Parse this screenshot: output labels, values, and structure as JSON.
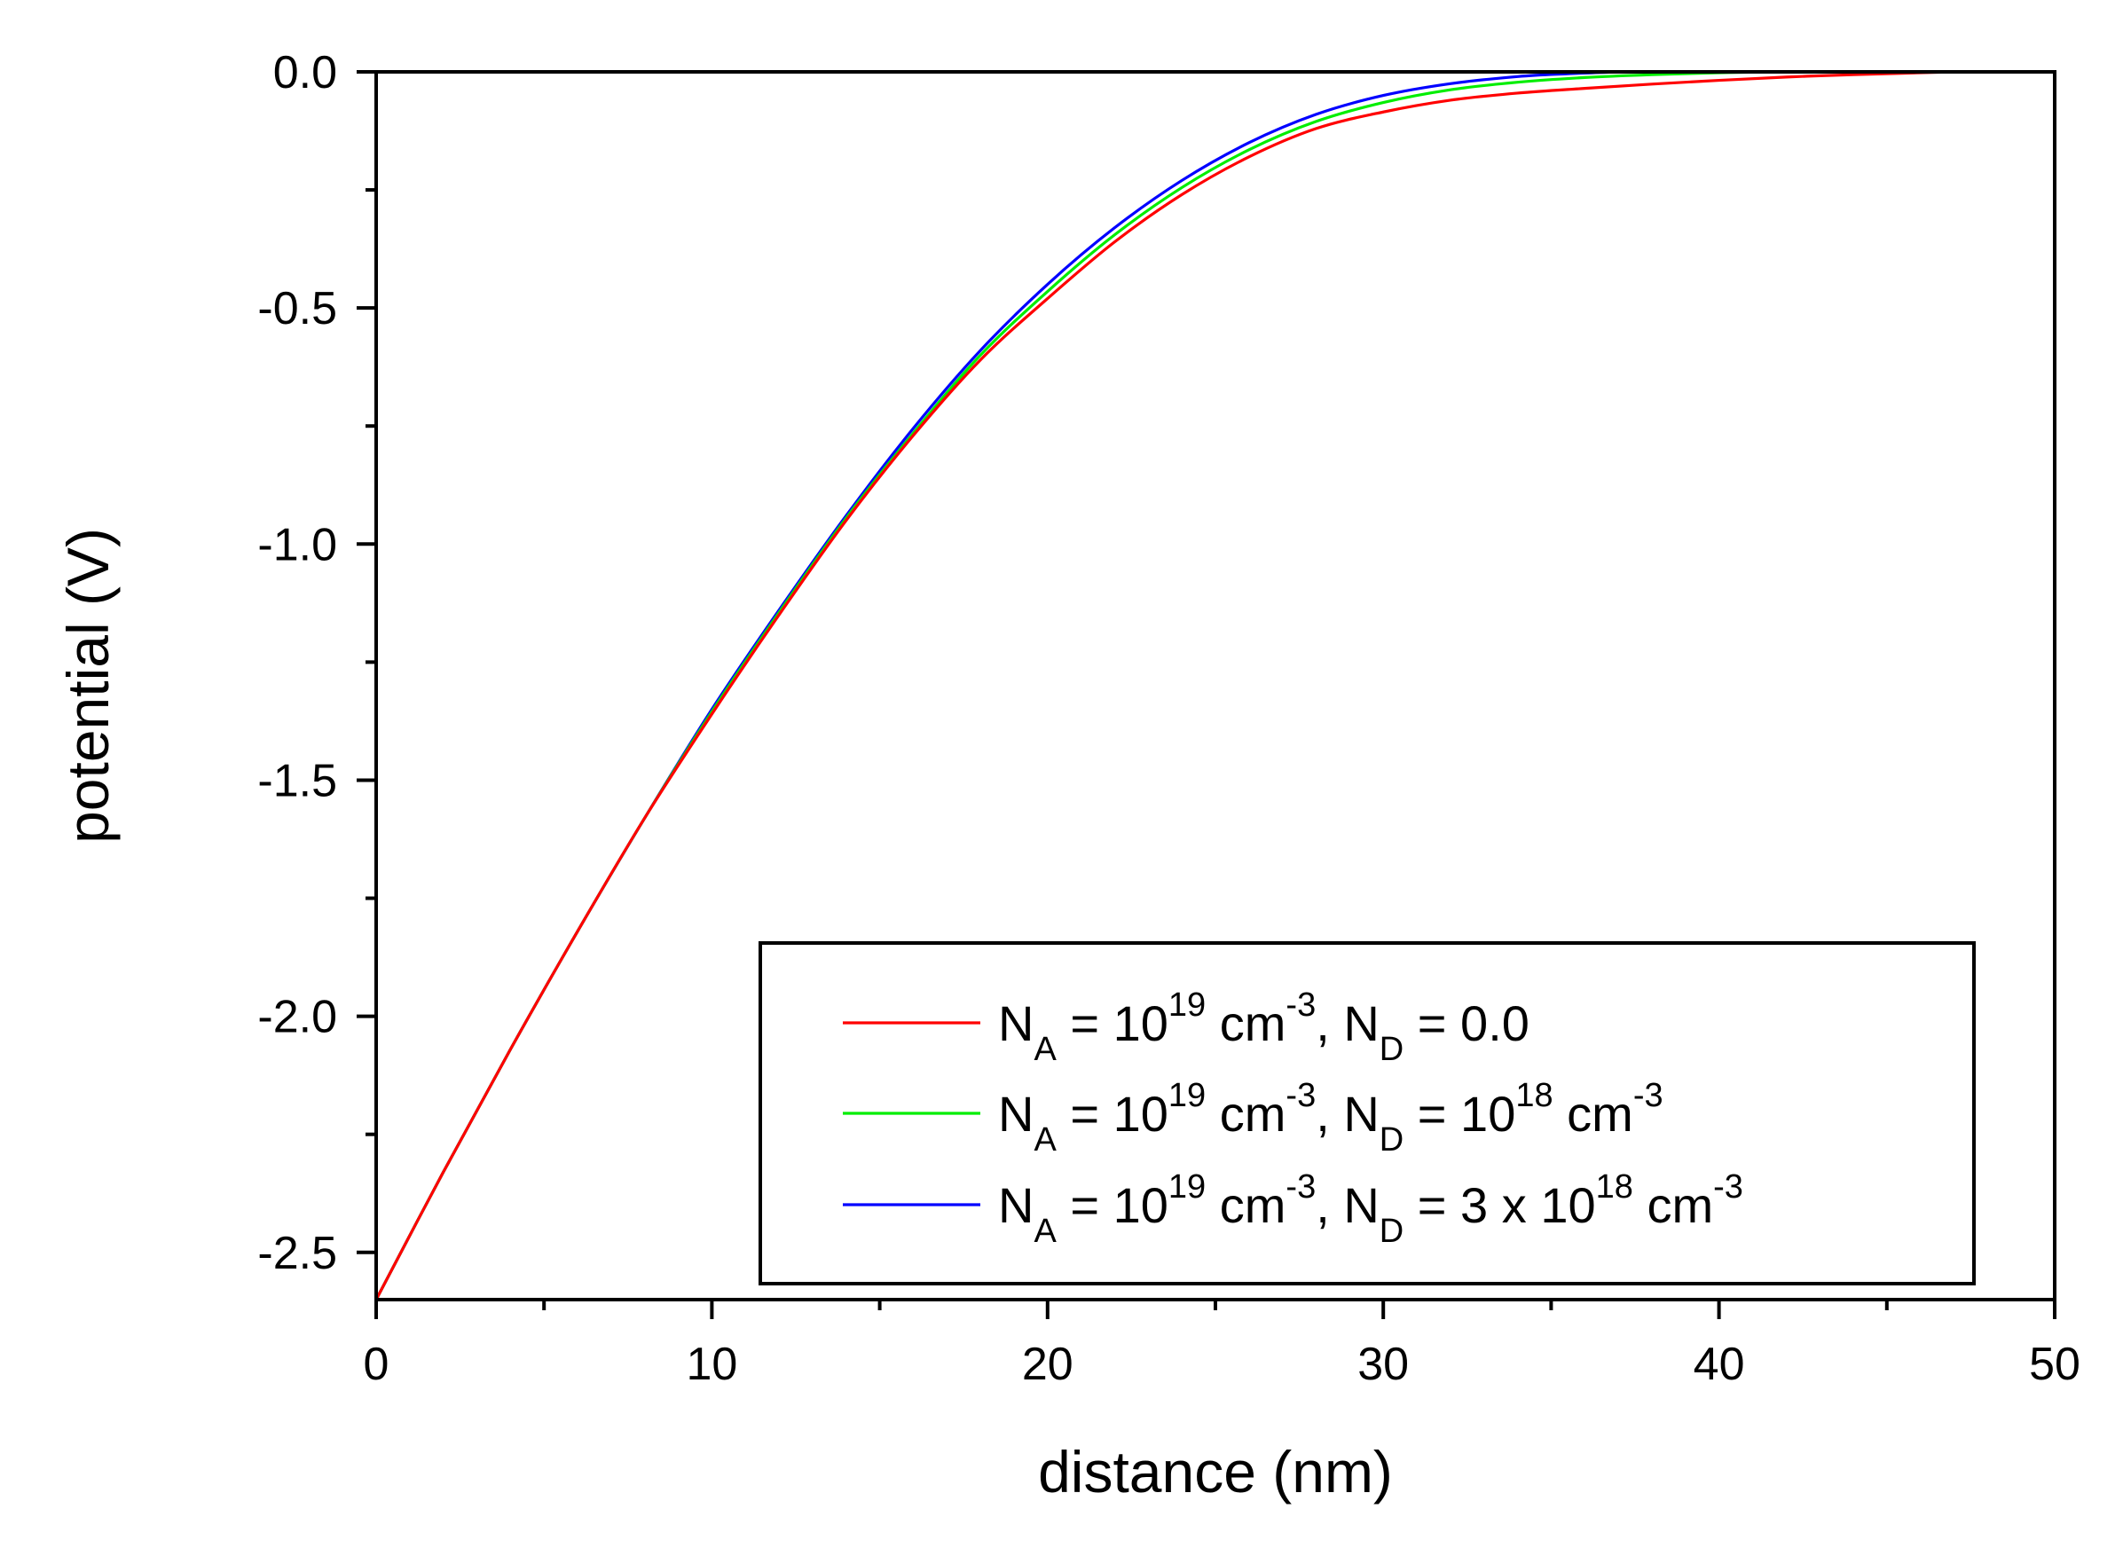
{
  "chart_data": {
    "type": "line",
    "title": "",
    "xlabel": "distance (nm)",
    "ylabel": "potential (V)",
    "xlim": [
      0,
      50
    ],
    "ylim": [
      -2.6,
      0.0
    ],
    "x_ticks_major": [
      0,
      10,
      20,
      30,
      40,
      50
    ],
    "x_tick_labels": [
      "0",
      "10",
      "20",
      "30",
      "40",
      "50"
    ],
    "x_ticks_minor": [
      5,
      15,
      25,
      35,
      45
    ],
    "y_ticks_major": [
      0.0,
      -0.5,
      -1.0,
      -1.5,
      -2.0,
      -2.5
    ],
    "y_tick_labels": [
      "0.0",
      "-0.5",
      "-1.0",
      "-1.5",
      "-2.0",
      "-2.5"
    ],
    "y_ticks_minor": [
      -0.25,
      -0.75,
      -1.25,
      -1.75,
      -2.25
    ],
    "grid": false,
    "legend_position": "bottom-right",
    "series": [
      {
        "name": "NA = 10^19 cm^-3, ND = 0.0",
        "color": "#ff0000",
        "legend": {
          "a": "N",
          "a_sub": "A",
          "b": " = 10",
          "b_sup": "19",
          "c": " cm",
          "c_sup": "-3",
          "d": ", N",
          "d_sub": "D",
          "e": " = 0.0",
          "e_sup": "",
          "f": "",
          "f_sup": ""
        },
        "x": [
          0,
          2,
          4,
          6,
          8,
          10,
          12,
          14,
          16,
          18,
          20,
          22,
          24,
          26,
          28,
          30,
          32,
          34,
          36,
          38,
          40,
          42,
          44,
          47
        ],
        "y": [
          -2.6,
          -2.33,
          -2.07,
          -1.82,
          -1.58,
          -1.36,
          -1.15,
          -0.95,
          -0.77,
          -0.61,
          -0.48,
          -0.36,
          -0.26,
          -0.18,
          -0.12,
          -0.085,
          -0.06,
          -0.045,
          -0.035,
          -0.026,
          -0.018,
          -0.011,
          -0.006,
          0.0
        ]
      },
      {
        "name": "NA = 10^19 cm^-3, ND = 10^18 cm^-3",
        "color": "#00ee00",
        "legend": {
          "a": "N",
          "a_sub": "A",
          "b": " = 10",
          "b_sup": "19",
          "c": " cm",
          "c_sup": "-3",
          "d": ", N",
          "d_sub": "D",
          "e": " = 10",
          "e_sup": "18",
          "f": " cm",
          "f_sup": "-3"
        },
        "x": [
          0,
          2,
          4,
          6,
          8,
          10,
          12,
          14,
          16,
          18,
          20,
          22,
          24,
          26,
          28,
          30,
          32,
          34,
          36,
          38,
          40,
          41.5
        ],
        "y": [
          -2.6,
          -2.33,
          -2.07,
          -1.82,
          -1.58,
          -1.355,
          -1.145,
          -0.945,
          -0.765,
          -0.6,
          -0.465,
          -0.345,
          -0.245,
          -0.165,
          -0.105,
          -0.065,
          -0.038,
          -0.022,
          -0.012,
          -0.006,
          -0.002,
          0.0
        ]
      },
      {
        "name": "NA = 10^19 cm^-3, ND = 3 x 10^18 cm^-3",
        "color": "#0000ff",
        "legend": {
          "a": "N",
          "a_sub": "A",
          "b": " = 10",
          "b_sup": "19",
          "c": " cm",
          "c_sup": "-3",
          "d": ", N",
          "d_sub": "D",
          "e": " = 3 x 10",
          "e_sup": "18",
          "f": " cm",
          "f_sup": "-3"
        },
        "x": [
          0,
          2,
          4,
          6,
          8,
          10,
          12,
          14,
          16,
          18,
          20,
          22,
          24,
          26,
          28,
          30,
          32,
          34,
          35.5,
          37
        ],
        "y": [
          -2.6,
          -2.33,
          -2.07,
          -1.82,
          -1.58,
          -1.35,
          -1.14,
          -0.94,
          -0.755,
          -0.59,
          -0.45,
          -0.33,
          -0.23,
          -0.15,
          -0.09,
          -0.05,
          -0.025,
          -0.01,
          -0.004,
          0.0
        ]
      }
    ]
  }
}
